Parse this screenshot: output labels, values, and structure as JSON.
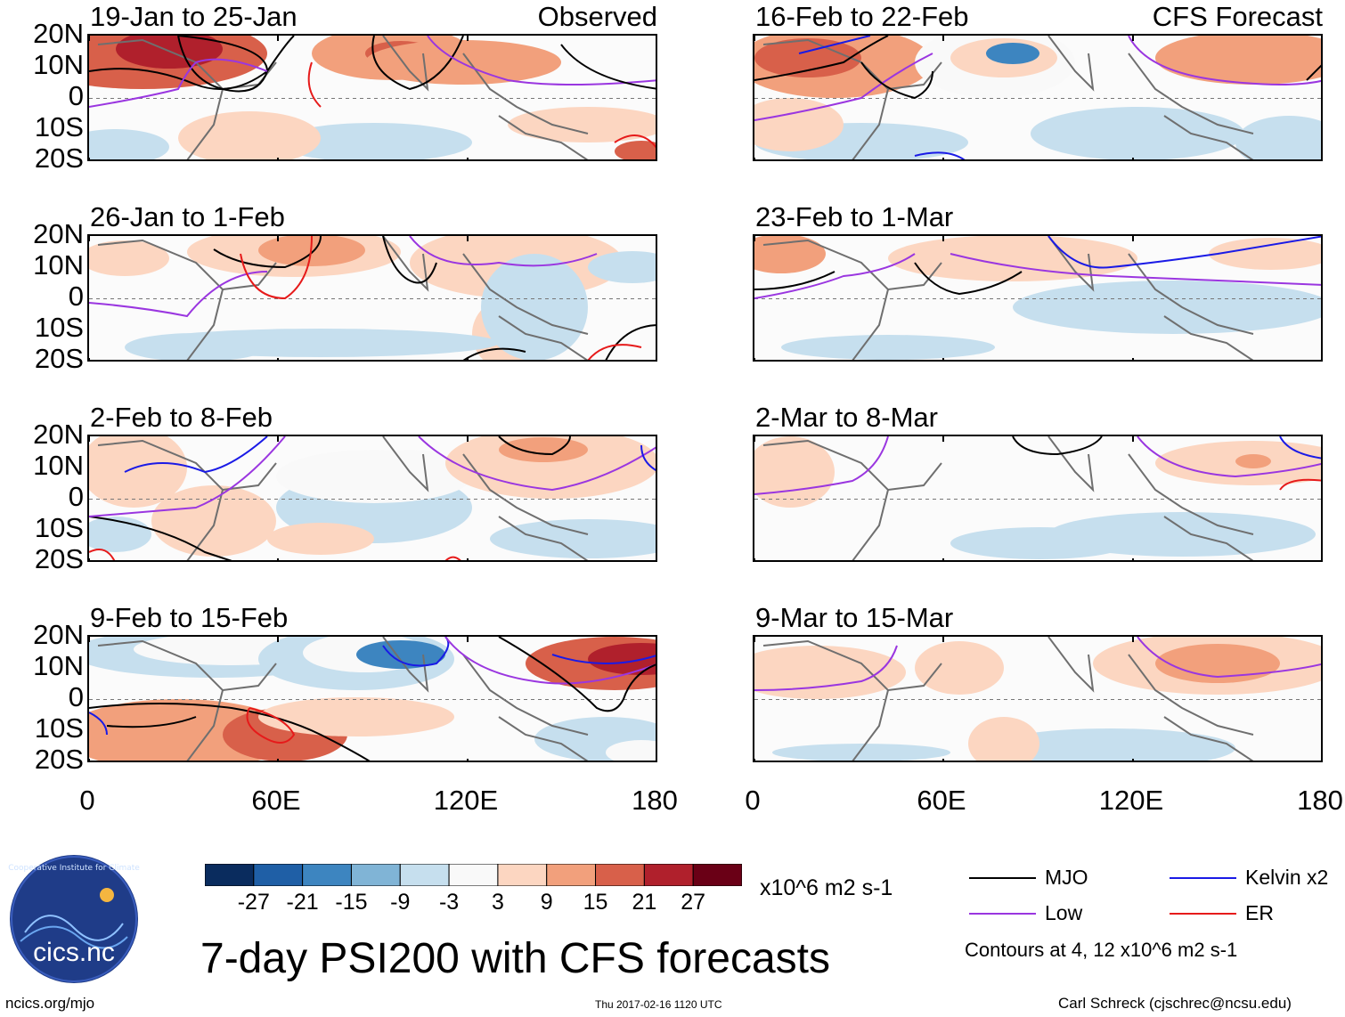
{
  "panels": [
    {
      "title": "19-Jan to 25-Jan",
      "tag": "Observed"
    },
    {
      "title": "26-Jan to 1-Feb",
      "tag": ""
    },
    {
      "title": "2-Feb to 8-Feb",
      "tag": ""
    },
    {
      "title": "9-Feb to 15-Feb",
      "tag": ""
    },
    {
      "title": "16-Feb to 22-Feb",
      "tag": "CFS Forecast"
    },
    {
      "title": "23-Feb to 1-Mar",
      "tag": ""
    },
    {
      "title": "2-Mar to 8-Mar",
      "tag": ""
    },
    {
      "title": "9-Mar to 15-Mar",
      "tag": ""
    }
  ],
  "axes": {
    "lat_labels": [
      "20N",
      "10N",
      "0",
      "10S",
      "20S"
    ],
    "lon_labels": [
      "0",
      "60E",
      "120E",
      "180"
    ]
  },
  "colorbar": {
    "labels": [
      "-27",
      "-21",
      "-15",
      "-9",
      "-3",
      "3",
      "9",
      "15",
      "21",
      "27"
    ],
    "units": "x10^6 m2 s-1",
    "colors": [
      "#0a2c5e",
      "#1f5fa6",
      "#3d85c0",
      "#80b4d6",
      "#c6dfee",
      "#f9f9f9",
      "#fcd6c1",
      "#f2a07c",
      "#d8604a",
      "#b0202c",
      "#6a0016"
    ]
  },
  "legend": {
    "items": [
      {
        "label": "MJO",
        "color": "#000000"
      },
      {
        "label": "Kelvin x2",
        "color": "#1a1ae6"
      },
      {
        "label": "Low",
        "color": "#9a36e0"
      },
      {
        "label": "ER",
        "color": "#e61a1a"
      }
    ],
    "contours_note": "Contours at 4, 12 x10^6 m2 s-1"
  },
  "logo_text": "cics.nc",
  "main_title": "7-day PSI200 with CFS forecasts",
  "footer": {
    "left": "ncics.org/mjo",
    "center": "Thu 2017-02-16 1120 UTC",
    "right": "Carl Schreck (cjschrec@ncsu.edu)"
  }
}
